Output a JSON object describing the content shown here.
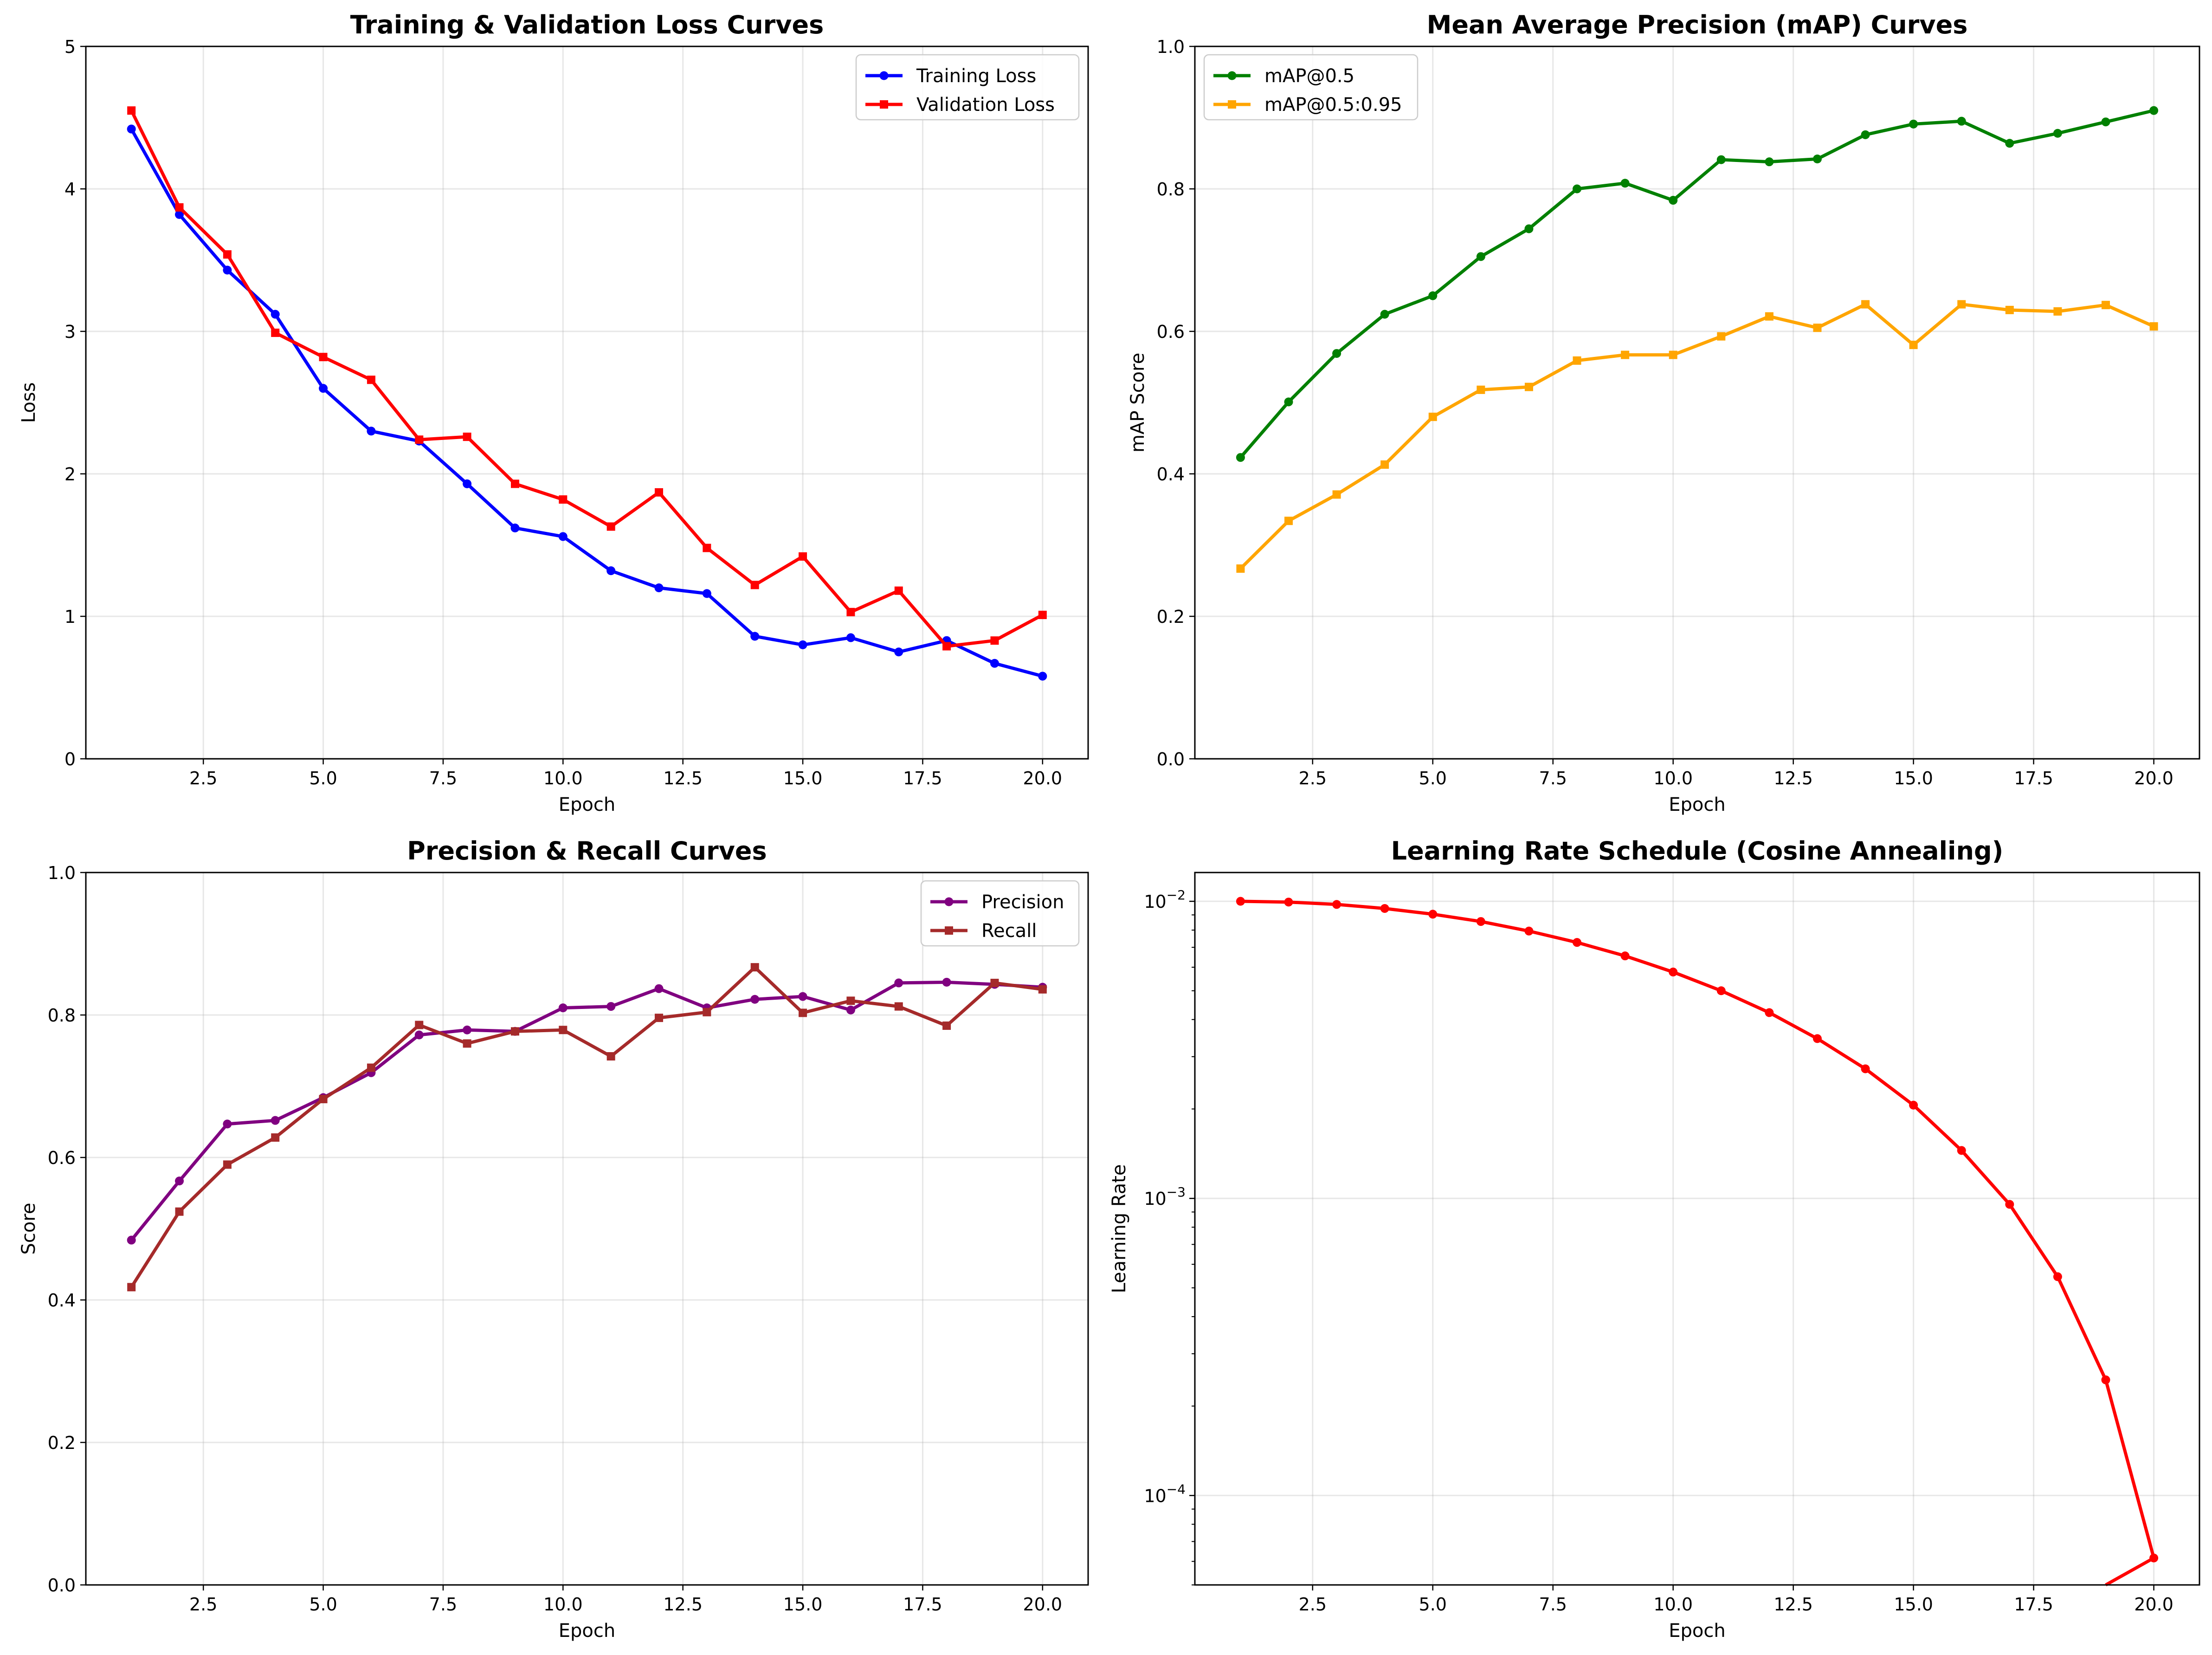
{
  "chart_data": [
    {
      "type": "line",
      "title": "Training & Validation Loss Curves",
      "xlabel": "Epoch",
      "ylabel": "Loss",
      "xlim": [
        0.05,
        20.95
      ],
      "ylim": [
        0,
        5
      ],
      "xticks": [
        "2.5",
        "5.0",
        "7.5",
        "10.0",
        "12.5",
        "15.0",
        "17.5",
        "20.0"
      ],
      "yticks": [
        "0",
        "1",
        "2",
        "3",
        "4",
        "5"
      ],
      "grid": true,
      "legend": "upper right",
      "x": [
        1,
        2,
        3,
        4,
        5,
        6,
        7,
        8,
        9,
        10,
        11,
        12,
        13,
        14,
        15,
        16,
        17,
        18,
        19,
        20
      ],
      "series": [
        {
          "name": "Training Loss",
          "color": "#0000ff",
          "marker": "circle",
          "values": [
            4.42,
            3.82,
            3.43,
            3.12,
            2.6,
            2.3,
            2.23,
            1.93,
            1.62,
            1.56,
            1.32,
            1.2,
            1.16,
            0.86,
            0.8,
            0.85,
            0.75,
            0.83,
            0.67,
            0.58
          ]
        },
        {
          "name": "Validation Loss",
          "color": "#ff0000",
          "marker": "square",
          "values": [
            4.55,
            3.87,
            3.54,
            2.99,
            2.82,
            2.66,
            2.24,
            2.26,
            1.93,
            1.82,
            1.63,
            1.87,
            1.48,
            1.22,
            1.42,
            1.03,
            1.18,
            0.79,
            0.83,
            1.01
          ]
        }
      ]
    },
    {
      "type": "line",
      "title": "Mean Average Precision (mAP) Curves",
      "xlabel": "Epoch",
      "ylabel": "mAP Score",
      "xlim": [
        0.05,
        20.95
      ],
      "ylim": [
        0,
        1
      ],
      "xticks": [
        "2.5",
        "5.0",
        "7.5",
        "10.0",
        "12.5",
        "15.0",
        "17.5",
        "20.0"
      ],
      "yticks": [
        "0.0",
        "0.2",
        "0.4",
        "0.6",
        "0.8",
        "1.0"
      ],
      "grid": true,
      "legend": "upper left",
      "x": [
        1,
        2,
        3,
        4,
        5,
        6,
        7,
        8,
        9,
        10,
        11,
        12,
        13,
        14,
        15,
        16,
        17,
        18,
        19,
        20
      ],
      "series": [
        {
          "name": "mAP@0.5",
          "color": "#008000",
          "marker": "circle",
          "values": [
            0.423,
            0.501,
            0.569,
            0.624,
            0.65,
            0.705,
            0.744,
            0.8,
            0.808,
            0.784,
            0.841,
            0.838,
            0.842,
            0.876,
            0.891,
            0.895,
            0.864,
            0.878,
            0.894,
            0.91
          ]
        },
        {
          "name": "mAP@0.5:0.95",
          "color": "#ffa500",
          "marker": "square",
          "values": [
            0.267,
            0.334,
            0.371,
            0.413,
            0.48,
            0.518,
            0.522,
            0.559,
            0.567,
            0.567,
            0.593,
            0.621,
            0.605,
            0.638,
            0.581,
            0.638,
            0.63,
            0.628,
            0.637,
            0.607
          ]
        }
      ]
    },
    {
      "type": "line",
      "title": "Precision & Recall Curves",
      "xlabel": "Epoch",
      "ylabel": "Score",
      "xlim": [
        0.05,
        20.95
      ],
      "ylim": [
        0,
        1
      ],
      "xticks": [
        "2.5",
        "5.0",
        "7.5",
        "10.0",
        "12.5",
        "15.0",
        "17.5",
        "20.0"
      ],
      "yticks": [
        "0.0",
        "0.2",
        "0.4",
        "0.6",
        "0.8",
        "1.0"
      ],
      "grid": true,
      "legend": "upper right",
      "x": [
        1,
        2,
        3,
        4,
        5,
        6,
        7,
        8,
        9,
        10,
        11,
        12,
        13,
        14,
        15,
        16,
        17,
        18,
        19,
        20
      ],
      "series": [
        {
          "name": "Precision",
          "color": "#800080",
          "marker": "circle",
          "values": [
            0.484,
            0.567,
            0.647,
            0.652,
            0.684,
            0.719,
            0.772,
            0.779,
            0.777,
            0.81,
            0.812,
            0.837,
            0.81,
            0.822,
            0.826,
            0.807,
            0.845,
            0.846,
            0.843,
            0.839
          ]
        },
        {
          "name": "Recall",
          "color": "#a52a2a",
          "marker": "square",
          "values": [
            0.418,
            0.524,
            0.59,
            0.628,
            0.682,
            0.726,
            0.786,
            0.76,
            0.777,
            0.779,
            0.742,
            0.796,
            0.804,
            0.867,
            0.803,
            0.82,
            0.812,
            0.785,
            0.845,
            0.836
          ]
        }
      ]
    },
    {
      "type": "line",
      "title": "Learning Rate Schedule (Cosine Annealing)",
      "xlabel": "Epoch",
      "ylabel": "Learning Rate",
      "xlim": [
        0.05,
        20.95
      ],
      "yscale": "log",
      "ylim": [
        5e-05,
        0.0125
      ],
      "xticks": [
        "2.5",
        "5.0",
        "7.5",
        "10.0",
        "12.5",
        "15.0",
        "17.5",
        "20.0"
      ],
      "yticks": [
        {
          "base": "10",
          "exp": "−2"
        },
        {
          "base": "10",
          "exp": "−3"
        },
        {
          "base": "10",
          "exp": "−4"
        }
      ],
      "grid": true,
      "legend": "none",
      "x": [
        1,
        2,
        3,
        4,
        5,
        6,
        7,
        8,
        9,
        10,
        11,
        12,
        13,
        14,
        15,
        16,
        17,
        18,
        19,
        20
      ],
      "series": [
        {
          "color": "#ff0000",
          "marker": "circle",
          "values": [
            0.01,
            0.00994,
            0.00976,
            0.00946,
            0.00905,
            0.00855,
            0.00794,
            0.00727,
            0.00655,
            0.00578,
            0.005,
            0.00422,
            0.00345,
            0.00273,
            0.00206,
            0.00145,
            0.000955,
            0.000545,
            0.000245,
            6.16e-05
          ]
        }
      ]
    }
  ]
}
